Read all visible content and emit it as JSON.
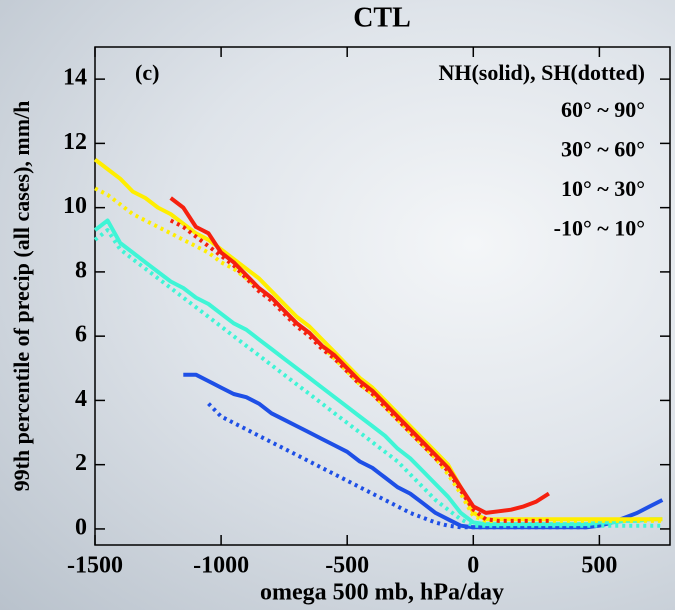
{
  "chart_data": {
    "type": "line",
    "title": "CTL",
    "x_label": "omega 500 mb, hPa/day",
    "y_label": "99th percentile of precip (all cases), mm/h",
    "annotation": "(c)",
    "legend_title": "NH(solid), SH(dotted)",
    "xlim": [
      -1500,
      780
    ],
    "ylim": [
      -0.5,
      15
    ],
    "xticks": [
      -1500,
      -1000,
      -500,
      0,
      500
    ],
    "yticks": [
      0,
      2,
      4,
      6,
      8,
      10,
      12,
      14
    ],
    "x": [
      -1500,
      -1450,
      -1400,
      -1350,
      -1300,
      -1250,
      -1200,
      -1150,
      -1100,
      -1050,
      -1000,
      -950,
      -900,
      -850,
      -800,
      -750,
      -700,
      -650,
      -600,
      -550,
      -500,
      -450,
      -400,
      -350,
      -300,
      -250,
      -200,
      -150,
      -100,
      -50,
      0,
      50,
      100,
      150,
      200,
      250,
      300,
      350,
      400,
      450,
      500,
      550,
      600,
      650,
      700,
      750
    ],
    "series": [
      {
        "name": "60° ~ 90°",
        "color": "#1e4fe6",
        "nh": [
          null,
          null,
          null,
          null,
          null,
          null,
          null,
          4.8,
          4.8,
          4.6,
          4.4,
          4.2,
          4.1,
          3.9,
          3.6,
          3.4,
          3.2,
          3.0,
          2.8,
          2.6,
          2.4,
          2.1,
          1.9,
          1.6,
          1.3,
          1.1,
          0.8,
          0.5,
          0.3,
          0.1,
          0.05,
          0.05,
          0.05,
          0.05,
          0.05,
          0.05,
          0.05,
          0.05,
          0.05,
          0.05,
          0.1,
          0.2,
          0.35,
          0.5,
          0.7,
          0.9
        ],
        "sh": [
          null,
          null,
          null,
          null,
          null,
          null,
          null,
          null,
          null,
          3.9,
          3.5,
          3.3,
          3.1,
          2.9,
          2.7,
          2.5,
          2.3,
          2.1,
          1.9,
          1.7,
          1.5,
          1.3,
          1.1,
          0.9,
          0.7,
          0.5,
          0.35,
          0.2,
          0.1,
          0.05,
          0.05,
          0.05,
          0.05,
          0.05,
          0.05,
          0.05,
          0.05,
          0.05,
          0.05,
          0.05,
          null,
          null,
          null,
          null,
          null,
          null
        ]
      },
      {
        "name": "30° ~ 60°",
        "color": "#3ff5d6",
        "nh": [
          9.3,
          9.6,
          8.9,
          8.6,
          8.3,
          8.0,
          7.7,
          7.5,
          7.2,
          7.0,
          6.7,
          6.4,
          6.2,
          5.9,
          5.6,
          5.3,
          5.0,
          4.7,
          4.4,
          4.1,
          3.8,
          3.5,
          3.2,
          2.9,
          2.5,
          2.2,
          1.8,
          1.4,
          1.0,
          0.5,
          0.2,
          0.15,
          0.15,
          0.15,
          0.15,
          0.15,
          0.15,
          0.15,
          0.15,
          0.15,
          0.2,
          0.2,
          0.25,
          0.25,
          0.3,
          0.3
        ],
        "sh": [
          9.0,
          9.3,
          8.7,
          8.4,
          8.1,
          7.8,
          7.5,
          7.2,
          6.9,
          6.6,
          6.3,
          6.0,
          5.7,
          5.4,
          5.1,
          4.8,
          4.5,
          4.2,
          3.9,
          3.6,
          3.3,
          3.0,
          2.7,
          2.4,
          2.1,
          1.7,
          1.3,
          0.9,
          0.6,
          0.3,
          0.1,
          0.1,
          0.1,
          0.1,
          0.1,
          0.1,
          0.1,
          0.1,
          0.1,
          0.1,
          0.1,
          0.1,
          0.1,
          0.1,
          0.1,
          0.1
        ]
      },
      {
        "name": "10° ~ 30°",
        "color": "#ffee00",
        "nh": [
          11.5,
          11.2,
          10.9,
          10.5,
          10.3,
          10.0,
          9.8,
          9.5,
          9.2,
          9.0,
          8.7,
          8.4,
          8.1,
          7.8,
          7.4,
          7.0,
          6.6,
          6.3,
          5.9,
          5.5,
          5.1,
          4.7,
          4.4,
          4.0,
          3.6,
          3.2,
          2.8,
          2.4,
          2.0,
          1.3,
          0.5,
          0.3,
          0.3,
          0.3,
          0.3,
          0.3,
          0.3,
          0.3,
          0.3,
          0.3,
          0.3,
          0.3,
          0.3,
          0.3,
          0.3,
          0.3
        ],
        "sh": [
          10.6,
          10.4,
          10.1,
          9.8,
          9.6,
          9.4,
          9.2,
          9.0,
          8.8,
          8.6,
          8.3,
          8.1,
          7.8,
          7.5,
          7.2,
          6.8,
          6.4,
          6.1,
          5.7,
          5.3,
          4.9,
          4.5,
          4.2,
          3.8,
          3.4,
          3.0,
          2.6,
          2.2,
          1.7,
          1.1,
          0.4,
          0.25,
          0.25,
          0.25,
          0.25,
          0.25,
          0.25,
          0.25,
          0.25,
          0.25,
          0.25,
          0.25,
          0.25,
          0.25,
          0.25,
          0.25
        ]
      },
      {
        "name": "-10° ~ 10°",
        "color": "#f5200f",
        "nh": [
          null,
          null,
          null,
          null,
          null,
          null,
          10.3,
          10.0,
          9.4,
          9.2,
          8.6,
          8.3,
          7.9,
          7.5,
          7.2,
          6.8,
          6.4,
          6.1,
          5.7,
          5.4,
          5.0,
          4.6,
          4.3,
          3.9,
          3.5,
          3.1,
          2.7,
          2.3,
          1.9,
          1.3,
          0.7,
          0.5,
          0.55,
          0.6,
          0.7,
          0.85,
          1.1,
          null,
          null,
          null,
          null,
          null,
          null,
          null,
          null,
          null
        ],
        "sh": [
          null,
          null,
          null,
          null,
          null,
          null,
          9.6,
          9.4,
          9.1,
          8.8,
          8.5,
          8.2,
          7.8,
          7.4,
          7.1,
          6.7,
          6.3,
          6.0,
          5.6,
          5.3,
          4.9,
          4.5,
          4.2,
          3.8,
          3.4,
          3.0,
          2.6,
          2.2,
          1.8,
          1.2,
          0.6,
          0.3,
          0.25,
          0.25,
          0.25,
          0.25,
          0.25,
          null,
          null,
          null,
          null,
          null,
          null,
          null,
          null,
          null
        ]
      }
    ]
  }
}
